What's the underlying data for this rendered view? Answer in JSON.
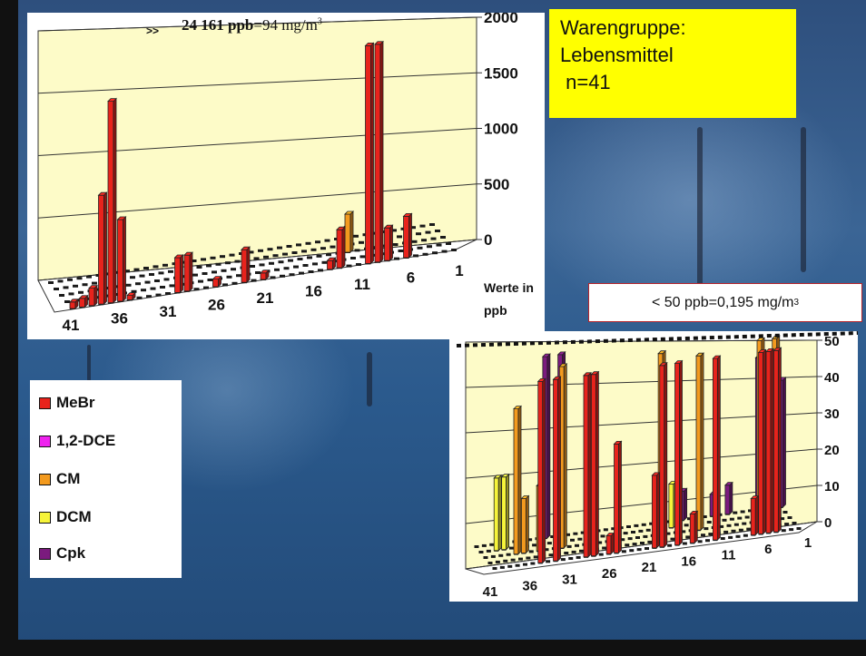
{
  "title_box": {
    "line1": "Warengruppe:",
    "line2": "Lebensmittel",
    "line3": " n=41",
    "background": "#ffff00"
  },
  "threshold_note": {
    "text": "< 50 ppb=0,195 mg/m",
    "superscript": "3"
  },
  "legend": {
    "items": [
      {
        "label": "MeBr",
        "color": "#e8231c"
      },
      {
        "label": "1,2-DCE",
        "color": "#ee22ee"
      },
      {
        "label": "CM",
        "color": "#f39a1e"
      },
      {
        "label": "DCM",
        "color": "#f6f43a"
      },
      {
        "label": "Cpk",
        "color": "#7b1b7e"
      }
    ]
  },
  "colors": {
    "plot_wall": "#fdfbc8",
    "floor_dots": "#1a1a1a",
    "threshold_border": "#b5252c"
  },
  "chart_data": [
    {
      "type": "bar",
      "view": "3d",
      "y_ticks": [
        "0",
        "500",
        "1000",
        "1500",
        "2000"
      ],
      "x_ticks": [
        "1",
        "6",
        "11",
        "16",
        "21",
        "26",
        "31",
        "36",
        "41"
      ],
      "ylim": [
        0,
        2000
      ],
      "x_order": "descending, sample 1 at right",
      "axis_caption_line1": "Werte in",
      "axis_caption_line2": "ppb",
      "overflow_marker": ">>",
      "overflow_note_bold": "24 161 ppb",
      "overflow_note_rest": "=94 mg/m",
      "overflow_note_sup": "3",
      "bars": [
        {
          "sample": 1,
          "series": "MeBr",
          "value": 60
        },
        {
          "sample": 2,
          "series": "MeBr",
          "value": 80
        },
        {
          "sample": 3,
          "series": "MeBr",
          "value": 160
        },
        {
          "sample": 4,
          "series": "MeBr",
          "value": 1000
        },
        {
          "sample": 5,
          "series": "MeBr",
          "value": 1850
        },
        {
          "sample": 6,
          "series": "MeBr",
          "value": 750
        },
        {
          "sample": 7,
          "series": "MeBr",
          "value": 40
        },
        {
          "sample": 12,
          "series": "MeBr",
          "value": 320
        },
        {
          "sample": 13,
          "series": "MeBr",
          "value": 330
        },
        {
          "sample": 16,
          "series": "MeBr",
          "value": 70
        },
        {
          "sample": 19,
          "series": "MeBr",
          "value": 300
        },
        {
          "sample": 21,
          "series": "MeBr",
          "value": 60
        },
        {
          "sample": 28,
          "series": "MeBr",
          "value": 80
        },
        {
          "sample": 29,
          "series": "MeBr",
          "value": 350
        },
        {
          "sample": 31,
          "series": "CM",
          "value": 350
        },
        {
          "sample": 32,
          "series": "MeBr",
          "value": 2000
        },
        {
          "sample": 32,
          "series": "Cpk",
          "value": 100
        },
        {
          "sample": 33,
          "series": "MeBr",
          "value": 2000
        },
        {
          "sample": 34,
          "series": "MeBr",
          "value": 300
        },
        {
          "sample": 36,
          "series": "MeBr",
          "value": 380
        }
      ]
    },
    {
      "type": "bar",
      "view": "3d",
      "y_ticks": [
        "0",
        "10",
        "20",
        "30",
        "40",
        "50"
      ],
      "x_ticks": [
        "1",
        "6",
        "11",
        "16",
        "21",
        "26",
        "31",
        "36",
        "41"
      ],
      "ylim": [
        0,
        50
      ],
      "x_order": "descending, sample 1 at right",
      "bars": [
        {
          "sample": 1,
          "series": "Cpk",
          "value": 35
        },
        {
          "sample": 2,
          "series": "Cpk",
          "value": 22
        },
        {
          "sample": 3,
          "series": "Cpk",
          "value": 15
        },
        {
          "sample": 3,
          "series": "CM",
          "value": 50
        },
        {
          "sample": 4,
          "series": "MeBr",
          "value": 50
        },
        {
          "sample": 4,
          "series": "Cpk",
          "value": 42
        },
        {
          "sample": 5,
          "series": "MeBr",
          "value": 50
        },
        {
          "sample": 5,
          "series": "CM",
          "value": 50
        },
        {
          "sample": 6,
          "series": "MeBr",
          "value": 50
        },
        {
          "sample": 7,
          "series": "MeBr",
          "value": 10
        },
        {
          "sample": 8,
          "series": "Cpk",
          "value": 8
        },
        {
          "sample": 10,
          "series": "Cpk",
          "value": 6
        },
        {
          "sample": 12,
          "series": "MeBr",
          "value": 50
        },
        {
          "sample": 13,
          "series": "CM",
          "value": 48
        },
        {
          "sample": 14,
          "series": "Cpk",
          "value": 8
        },
        {
          "sample": 15,
          "series": "MeBr",
          "value": 8
        },
        {
          "sample": 16,
          "series": "DCM",
          "value": 12
        },
        {
          "sample": 17,
          "series": "MeBr",
          "value": 50
        },
        {
          "sample": 18,
          "series": "CM",
          "value": 50
        },
        {
          "sample": 19,
          "series": "MeBr",
          "value": 50
        },
        {
          "sample": 20,
          "series": "MeBr",
          "value": 20
        },
        {
          "sample": 25,
          "series": "MeBr",
          "value": 30
        },
        {
          "sample": 26,
          "series": "MeBr",
          "value": 5
        },
        {
          "sample": 28,
          "series": "MeBr",
          "value": 50
        },
        {
          "sample": 29,
          "series": "MeBr",
          "value": 50
        },
        {
          "sample": 30,
          "series": "Cpk",
          "value": 50
        },
        {
          "sample": 31,
          "series": "CM",
          "value": 50
        },
        {
          "sample": 32,
          "series": "Cpk",
          "value": 50
        },
        {
          "sample": 33,
          "series": "MeBr",
          "value": 50
        },
        {
          "sample": 34,
          "series": "CM",
          "value": 18
        },
        {
          "sample": 35,
          "series": "MeBr",
          "value": 50
        },
        {
          "sample": 36,
          "series": "CM",
          "value": 15
        },
        {
          "sample": 37,
          "series": "CM",
          "value": 40
        },
        {
          "sample": 38,
          "series": "DCM",
          "value": 20
        },
        {
          "sample": 39,
          "series": "DCM",
          "value": 20
        }
      ]
    }
  ]
}
